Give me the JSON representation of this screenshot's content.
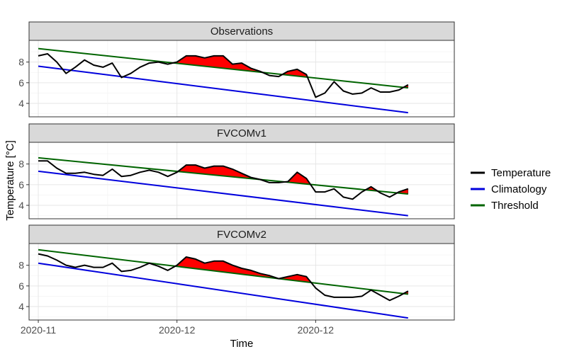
{
  "chart_data": {
    "type": "line",
    "xlabel": "Time",
    "ylabel": "Temperature [°C]",
    "x_ticks": [
      "2020-11",
      "2020-12",
      "2020-12"
    ],
    "x_tick_days": [
      0,
      30,
      60
    ],
    "xlim_days": [
      -2,
      90
    ],
    "ylim": [
      2.7,
      10.1
    ],
    "y_ticks": [
      4,
      6,
      8
    ],
    "grid": true,
    "legend_position": "right",
    "legend": [
      {
        "name": "Temperature",
        "color": "#000000"
      },
      {
        "name": "Climatology",
        "color": "#0000dd"
      },
      {
        "name": "Threshold",
        "color": "#006400"
      }
    ],
    "exceedance_fill_color": "#ff0000",
    "panels": [
      {
        "title": "Observations",
        "temperature": [
          8.6,
          8.8,
          8.0,
          6.9,
          7.5,
          8.2,
          7.7,
          7.5,
          7.9,
          6.5,
          6.9,
          7.5,
          7.9,
          8.0,
          7.8,
          8.0,
          8.6,
          8.6,
          8.4,
          8.6,
          8.6,
          7.8,
          7.9,
          7.4,
          7.1,
          6.7,
          6.6,
          7.1,
          7.3,
          6.8,
          4.6,
          5.0,
          6.1,
          5.2,
          4.9,
          5.0,
          5.5,
          5.1,
          5.1,
          5.3,
          5.8
        ],
        "climatology": [
          7.6,
          3.1
        ],
        "threshold": [
          9.3,
          5.5
        ]
      },
      {
        "title": "FVCOMv1",
        "temperature": [
          8.3,
          8.3,
          7.6,
          7.1,
          7.1,
          7.2,
          7.0,
          6.9,
          7.5,
          6.8,
          6.9,
          7.2,
          7.4,
          7.2,
          6.8,
          7.2,
          7.9,
          7.9,
          7.6,
          7.8,
          7.8,
          7.5,
          7.1,
          6.7,
          6.5,
          6.2,
          6.2,
          6.3,
          7.2,
          6.6,
          5.3,
          5.3,
          5.6,
          4.8,
          4.6,
          5.3,
          5.8,
          5.2,
          4.8,
          5.3,
          5.6
        ],
        "climatology": [
          7.3,
          3.0
        ],
        "threshold": [
          8.6,
          5.1
        ]
      },
      {
        "title": "FVCOMv2",
        "temperature": [
          9.1,
          8.9,
          8.5,
          8.0,
          7.8,
          8.0,
          7.8,
          7.8,
          8.2,
          7.4,
          7.5,
          7.8,
          8.2,
          7.9,
          7.5,
          8.0,
          8.8,
          8.6,
          8.2,
          8.4,
          8.4,
          8.0,
          7.7,
          7.5,
          7.2,
          7.0,
          6.7,
          6.9,
          7.1,
          6.9,
          5.8,
          5.1,
          4.9,
          4.9,
          4.9,
          5.0,
          5.6,
          5.1,
          4.6,
          5.0,
          5.5
        ],
        "climatology": [
          8.2,
          2.9
        ],
        "threshold": [
          9.5,
          5.2
        ]
      }
    ]
  }
}
